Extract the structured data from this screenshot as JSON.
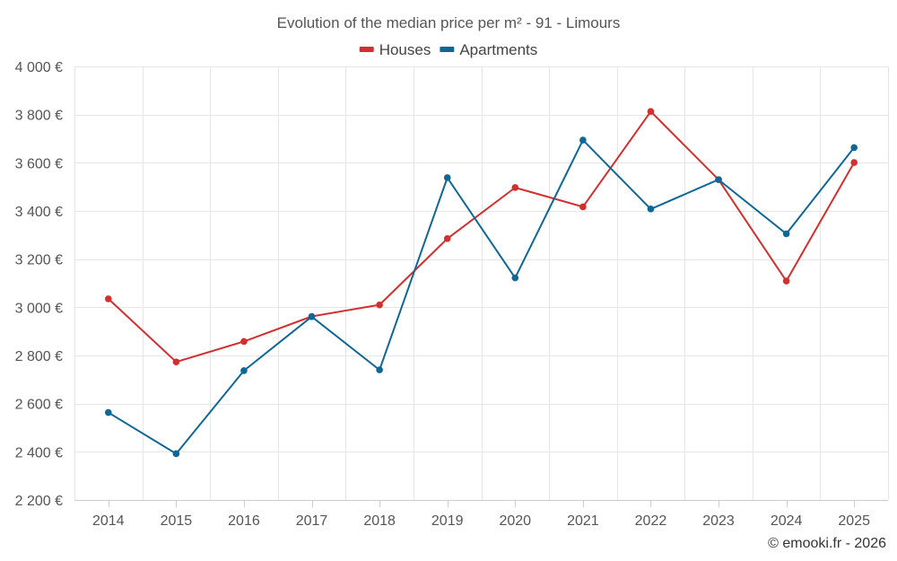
{
  "chart_data": {
    "type": "line",
    "title": "Evolution of the median price per m² - 91 - Limours",
    "categories": [
      "2014",
      "2015",
      "2016",
      "2017",
      "2018",
      "2019",
      "2020",
      "2021",
      "2022",
      "2023",
      "2024",
      "2025"
    ],
    "series": [
      {
        "name": "Houses",
        "color": "#d32f2f",
        "values": [
          3035,
          2773,
          2858,
          2962,
          3010,
          3285,
          3497,
          3417,
          3813,
          3530,
          3109,
          3601
        ]
      },
      {
        "name": "Apartments",
        "color": "#0f6796",
        "values": [
          2563,
          2392,
          2737,
          2961,
          2740,
          3538,
          3122,
          3694,
          3408,
          3530,
          3305,
          3663
        ]
      }
    ],
    "ylim": [
      2200,
      4000
    ],
    "yticks": [
      2200,
      2400,
      2600,
      2800,
      3000,
      3200,
      3400,
      3600,
      3800,
      4000
    ],
    "ytick_labels": [
      "2 200 €",
      "2 400 €",
      "2 600 €",
      "2 800 €",
      "3 000 €",
      "3 200 €",
      "3 400 €",
      "3 600 €",
      "3 800 €",
      "4 000 €"
    ],
    "xlabel": "",
    "ylabel": "",
    "grid": true,
    "legend_position": "top-center",
    "credit": "© emooki.fr - 2026"
  }
}
